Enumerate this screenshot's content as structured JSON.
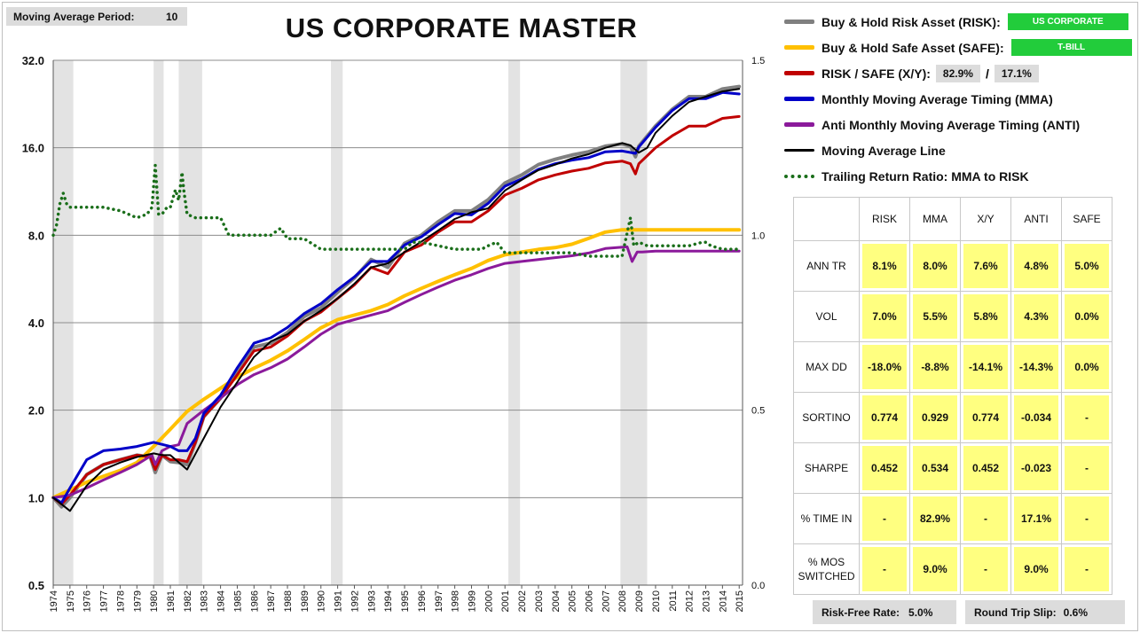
{
  "header": {
    "ma_label": "Moving Average Period:",
    "ma_value": "10",
    "title": "US CORPORATE MASTER"
  },
  "legend": {
    "risk": {
      "label": "Buy & Hold Risk Asset (RISK):",
      "badge": "US CORPORATE",
      "color": "#808080"
    },
    "safe": {
      "label": "Buy & Hold Safe Asset (SAFE):",
      "badge": "T-BILL",
      "color": "#ffc000"
    },
    "xy": {
      "label": "RISK / SAFE (X/Y):",
      "pct_risk": "82.9%",
      "slash": "/",
      "pct_safe": "17.1%",
      "color": "#c00000"
    },
    "mma": {
      "label": "Monthly Moving Average Timing (MMA)",
      "color": "#0000c8"
    },
    "anti": {
      "label": "Anti Monthly Moving Average Timing (ANTI)",
      "color": "#8b1a9b"
    },
    "ma_line": {
      "label": "Moving Average Line",
      "color": "#000000"
    },
    "ratio": {
      "label": "Trailing Return Ratio: MMA to RISK",
      "color": "#1a6e1a"
    }
  },
  "stats": {
    "columns": [
      "RISK",
      "MMA",
      "X/Y",
      "ANTI",
      "SAFE"
    ],
    "rows": [
      {
        "label": "ANN TR",
        "values": [
          "8.1%",
          "8.0%",
          "7.6%",
          "4.8%",
          "5.0%"
        ]
      },
      {
        "label": "VOL",
        "values": [
          "7.0%",
          "5.5%",
          "5.8%",
          "4.3%",
          "0.0%"
        ]
      },
      {
        "label": "MAX DD",
        "values": [
          "-18.0%",
          "-8.8%",
          "-14.1%",
          "-14.3%",
          "0.0%"
        ]
      },
      {
        "label": "SORTINO",
        "values": [
          "0.774",
          "0.929",
          "0.774",
          "-0.034",
          "-"
        ]
      },
      {
        "label": "SHARPE",
        "values": [
          "0.452",
          "0.534",
          "0.452",
          "-0.023",
          "-"
        ]
      },
      {
        "label": "% TIME IN",
        "values": [
          "-",
          "82.9%",
          "-",
          "17.1%",
          "-"
        ]
      },
      {
        "label": "% MOS SWITCHED",
        "values": [
          "-",
          "9.0%",
          "-",
          "9.0%",
          "-"
        ]
      }
    ]
  },
  "footer": {
    "rf_label": "Risk-Free Rate:",
    "rf_value": "5.0%",
    "slip_label": "Round Trip Slip:",
    "slip_value": "0.6%"
  },
  "chart_data": {
    "type": "line",
    "y_scale": "log2",
    "ylim": [
      0.5,
      32
    ],
    "y_ticks": [
      "0.5",
      "1.0",
      "2.0",
      "4.0",
      "8.0",
      "16.0",
      "32.0"
    ],
    "y2lim": [
      0,
      1.5
    ],
    "y2_ticks": [
      "0.0",
      "0.5",
      "1.0",
      "1.5"
    ],
    "xlim": [
      1974,
      2015.2
    ],
    "x_ticks": [
      "1974",
      "1975",
      "1976",
      "1977",
      "1978",
      "1979",
      "1980",
      "1981",
      "1982",
      "1983",
      "1984",
      "1985",
      "1986",
      "1987",
      "1988",
      "1989",
      "1990",
      "1991",
      "1992",
      "1993",
      "1994",
      "1995",
      "1996",
      "1997",
      "1998",
      "1999",
      "2000",
      "2001",
      "2002",
      "2003",
      "2004",
      "2005",
      "2006",
      "2007",
      "2008",
      "2009",
      "2010",
      "2011",
      "2012",
      "2013",
      "2014",
      "2015"
    ],
    "grid": true,
    "recessions": [
      [
        1974,
        1975.2
      ],
      [
        1980.0,
        1980.6
      ],
      [
        1981.5,
        1982.9
      ],
      [
        1990.6,
        1991.3
      ],
      [
        2001.2,
        2001.9
      ],
      [
        2007.9,
        2009.5
      ]
    ],
    "series": [
      {
        "name": "RISK",
        "axis": "left",
        "color": "#808080",
        "width": 4,
        "x": [
          1974,
          1974.5,
          1975,
          1976,
          1977,
          1978,
          1979,
          1979.8,
          1980.1,
          1980.5,
          1981,
          1981.5,
          1982,
          1982.5,
          1983,
          1984,
          1985,
          1986,
          1987,
          1988,
          1989,
          1990,
          1991,
          1992,
          1993,
          1994,
          1995,
          1996,
          1997,
          1998,
          1999,
          2000,
          2001,
          2002,
          2003,
          2004,
          2005,
          2006,
          2007,
          2008,
          2008.5,
          2008.8,
          2009,
          2010,
          2011,
          2012,
          2013,
          2014,
          2015
        ],
        "y": [
          1.0,
          0.93,
          1.0,
          1.2,
          1.3,
          1.35,
          1.4,
          1.38,
          1.22,
          1.4,
          1.33,
          1.32,
          1.3,
          1.55,
          1.9,
          2.2,
          2.7,
          3.3,
          3.4,
          3.7,
          4.2,
          4.5,
          5.1,
          5.7,
          6.6,
          6.2,
          7.5,
          8.0,
          8.9,
          9.7,
          9.7,
          10.6,
          12.1,
          12.9,
          14.0,
          14.6,
          15.1,
          15.5,
          16.2,
          16.5,
          16.2,
          14.9,
          16.2,
          19.0,
          21.7,
          24.0,
          24.0,
          25.5,
          26.0
        ]
      },
      {
        "name": "SAFE",
        "axis": "left",
        "color": "#ffc000",
        "width": 4,
        "x": [
          1974,
          1976,
          1978,
          1979,
          1980,
          1981,
          1982,
          1983,
          1984,
          1985,
          1986,
          1987,
          1988,
          1989,
          1990,
          1991,
          1992,
          1993,
          1994,
          1995,
          1996,
          1997,
          1998,
          1999,
          2000,
          2001,
          2002,
          2003,
          2004,
          2005,
          2006,
          2007,
          2008,
          2009,
          2010,
          2011,
          2012,
          2013,
          2014,
          2015
        ],
        "y": [
          1.0,
          1.13,
          1.24,
          1.32,
          1.5,
          1.72,
          1.98,
          2.18,
          2.38,
          2.6,
          2.79,
          2.97,
          3.2,
          3.5,
          3.84,
          4.1,
          4.25,
          4.4,
          4.62,
          4.95,
          5.25,
          5.55,
          5.85,
          6.15,
          6.55,
          6.85,
          7.0,
          7.15,
          7.25,
          7.45,
          7.8,
          8.2,
          8.35,
          8.35,
          8.35,
          8.35,
          8.35,
          8.35,
          8.35,
          8.35
        ]
      },
      {
        "name": "X/Y",
        "axis": "left",
        "color": "#c00000",
        "width": 3,
        "x": [
          1974,
          1974.5,
          1975,
          1976,
          1977,
          1978,
          1979,
          1979.8,
          1980.1,
          1980.5,
          1981,
          1981.5,
          1982,
          1982.5,
          1983,
          1984,
          1985,
          1986,
          1987,
          1988,
          1989,
          1990,
          1991,
          1992,
          1993,
          1994,
          1995,
          1996,
          1997,
          1998,
          1999,
          2000,
          2001,
          2002,
          2003,
          2004,
          2005,
          2006,
          2007,
          2008,
          2008.5,
          2008.8,
          2009,
          2010,
          2011,
          2012,
          2013,
          2014,
          2015
        ],
        "y": [
          1.0,
          0.95,
          1.02,
          1.2,
          1.3,
          1.35,
          1.4,
          1.38,
          1.25,
          1.4,
          1.35,
          1.35,
          1.33,
          1.55,
          1.9,
          2.2,
          2.65,
          3.2,
          3.3,
          3.6,
          4.05,
          4.35,
          4.85,
          5.4,
          6.2,
          5.9,
          7.0,
          7.4,
          8.2,
          8.9,
          8.9,
          9.7,
          11.0,
          11.6,
          12.4,
          12.9,
          13.3,
          13.6,
          14.2,
          14.4,
          14.1,
          13.0,
          14.1,
          16.0,
          17.6,
          19.0,
          19.0,
          20.2,
          20.5
        ]
      },
      {
        "name": "ANTI",
        "axis": "left",
        "color": "#8b1a9b",
        "width": 3,
        "x": [
          1974,
          1975,
          1976,
          1977,
          1978,
          1979,
          1979.9,
          1980.1,
          1980.5,
          1981,
          1981.5,
          1982,
          1983,
          1984,
          1985,
          1986,
          1987,
          1988,
          1989,
          1990,
          1991,
          1992,
          1993,
          1994,
          1995,
          1996,
          1997,
          1998,
          1999,
          2000,
          2001,
          2002,
          2003,
          2004,
          2005,
          2006,
          2007,
          2008.3,
          2008.6,
          2008.9,
          2009.2,
          2010,
          2011,
          2012,
          2013,
          2014,
          2015
        ],
        "y": [
          1.0,
          1.02,
          1.08,
          1.15,
          1.22,
          1.3,
          1.4,
          1.3,
          1.45,
          1.5,
          1.52,
          1.8,
          2.0,
          2.2,
          2.45,
          2.65,
          2.8,
          3.0,
          3.3,
          3.65,
          3.95,
          4.1,
          4.25,
          4.4,
          4.7,
          5.0,
          5.3,
          5.6,
          5.85,
          6.15,
          6.4,
          6.5,
          6.6,
          6.7,
          6.8,
          6.95,
          7.2,
          7.3,
          6.5,
          7.0,
          7.0,
          7.05,
          7.05,
          7.05,
          7.05,
          7.05,
          7.05
        ]
      },
      {
        "name": "MMA",
        "axis": "left",
        "color": "#0000c8",
        "width": 3,
        "x": [
          1974,
          1974.5,
          1975,
          1976,
          1977,
          1978,
          1979,
          1980,
          1981,
          1981.5,
          1982,
          1982.5,
          1983,
          1984,
          1985,
          1986,
          1987,
          1988,
          1989,
          1990,
          1991,
          1992,
          1993,
          1994,
          1995,
          1996,
          1997,
          1998,
          1999,
          2000,
          2001,
          2002,
          2003,
          2004,
          2005,
          2006,
          2007,
          2008,
          2008.8,
          2009,
          2010,
          2011,
          2012,
          2013,
          2014,
          2015
        ],
        "y": [
          1.0,
          0.96,
          1.08,
          1.35,
          1.45,
          1.47,
          1.5,
          1.55,
          1.5,
          1.45,
          1.45,
          1.6,
          1.95,
          2.25,
          2.8,
          3.4,
          3.55,
          3.85,
          4.3,
          4.65,
          5.2,
          5.75,
          6.5,
          6.5,
          7.4,
          7.9,
          8.7,
          9.5,
          9.4,
          10.3,
          11.8,
          12.5,
          13.5,
          14.1,
          14.5,
          14.8,
          15.5,
          15.6,
          15.3,
          16.1,
          18.8,
          21.5,
          23.6,
          23.6,
          24.8,
          24.5
        ]
      },
      {
        "name": "Moving Average Line",
        "axis": "left",
        "color": "#000000",
        "width": 2,
        "x": [
          1974,
          1975,
          1976,
          1977,
          1978,
          1979,
          1980,
          1980.5,
          1981,
          1982,
          1983,
          1984,
          1985,
          1986,
          1987,
          1988,
          1989,
          1990,
          1991,
          1992,
          1993,
          1994,
          1995,
          1996,
          1997,
          1998,
          1999,
          2000,
          2001,
          2002,
          2003,
          2004,
          2005,
          2006,
          2007,
          2008,
          2008.5,
          2009,
          2009.5,
          2010,
          2011,
          2012,
          2013,
          2014,
          2015
        ],
        "y": [
          1.0,
          0.9,
          1.1,
          1.25,
          1.32,
          1.38,
          1.42,
          1.4,
          1.4,
          1.25,
          1.6,
          2.05,
          2.5,
          3.05,
          3.45,
          3.65,
          4.05,
          4.4,
          4.85,
          5.45,
          6.2,
          6.4,
          7.0,
          7.6,
          8.3,
          9.1,
          9.6,
          9.9,
          11.4,
          12.4,
          13.4,
          14.0,
          14.7,
          15.2,
          16.0,
          16.6,
          16.3,
          15.4,
          16.0,
          18.0,
          20.6,
          23.0,
          24.0,
          25.0,
          25.5
        ]
      },
      {
        "name": "Trailing Return Ratio: MMA to RISK",
        "axis": "right",
        "color": "#1a6e1a",
        "width": 3,
        "dotted": true,
        "x": [
          1974,
          1974.2,
          1974.4,
          1974.6,
          1974.8,
          1975,
          1976,
          1977,
          1978,
          1979,
          1979.6,
          1979.9,
          1980.1,
          1980.3,
          1980.5,
          1980.8,
          1981,
          1981.3,
          1981.5,
          1981.7,
          1981.8,
          1982,
          1982.5,
          1983,
          1984,
          1984.5,
          1985,
          1986,
          1987,
          1987.6,
          1988,
          1989,
          1990,
          1990.6,
          1991,
          1992,
          1993,
          1994,
          1995,
          1995.5,
          1996,
          1997,
          1998,
          1999,
          1999.6,
          2000,
          2000.5,
          2001,
          2002,
          2003,
          2004,
          2005,
          2006,
          2007,
          2008,
          2008.5,
          2008.7,
          2009,
          2009.5,
          2010,
          2011,
          2012,
          2012.8,
          2013,
          2013.3,
          2014,
          2015
        ],
        "y": [
          1.0,
          1.03,
          1.09,
          1.12,
          1.09,
          1.08,
          1.08,
          1.08,
          1.07,
          1.05,
          1.06,
          1.08,
          1.2,
          1.06,
          1.06,
          1.08,
          1.08,
          1.13,
          1.1,
          1.18,
          1.13,
          1.06,
          1.05,
          1.05,
          1.05,
          1.0,
          1.0,
          1.0,
          1.0,
          1.02,
          0.99,
          0.99,
          0.96,
          0.96,
          0.96,
          0.96,
          0.96,
          0.96,
          0.96,
          0.98,
          0.98,
          0.97,
          0.96,
          0.96,
          0.96,
          0.97,
          0.98,
          0.95,
          0.95,
          0.95,
          0.95,
          0.95,
          0.94,
          0.94,
          0.94,
          1.05,
          0.97,
          0.98,
          0.97,
          0.97,
          0.97,
          0.97,
          0.98,
          0.98,
          0.97,
          0.96,
          0.96
        ]
      }
    ]
  }
}
